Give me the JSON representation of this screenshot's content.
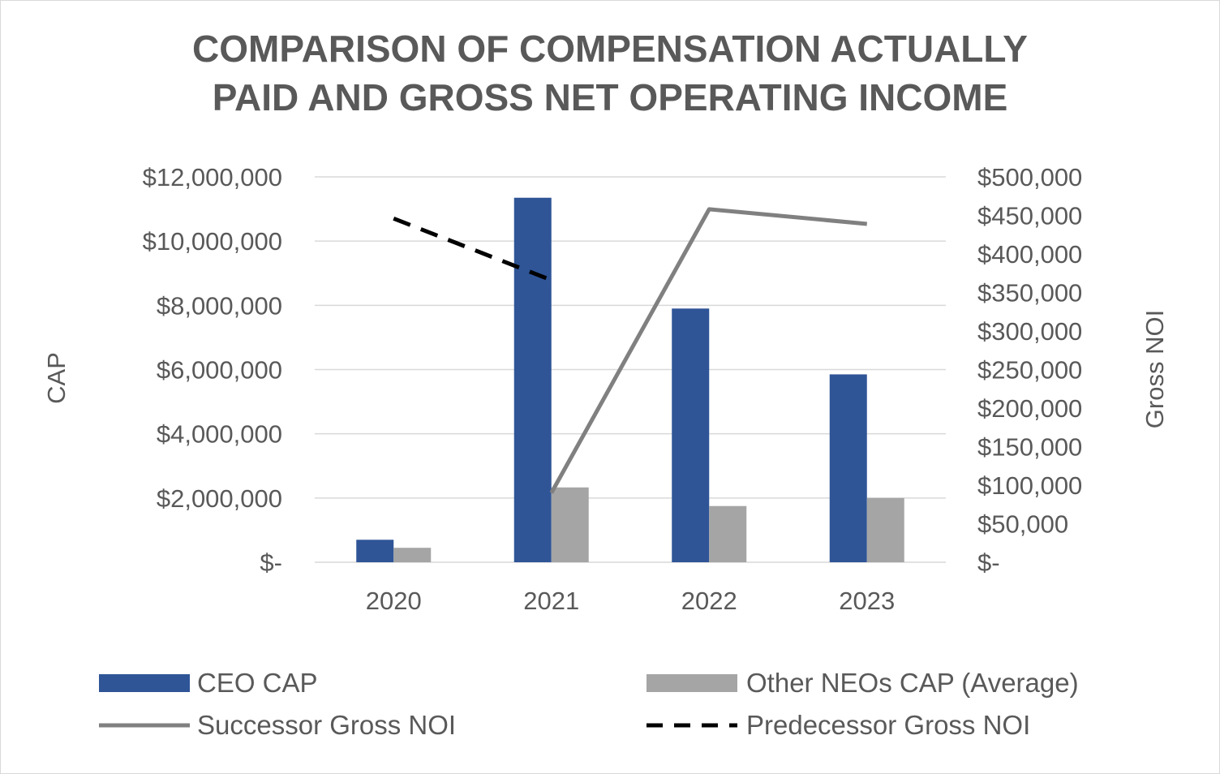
{
  "chart_data": {
    "type": "bar",
    "title_line1": "COMPARISON OF COMPENSATION ACTUALLY",
    "title_line2": "PAID AND GROSS NET OPERATING INCOME",
    "categories": [
      "2020",
      "2021",
      "2022",
      "2023"
    ],
    "ylabel": "CAP",
    "y2label": "Gross NOI",
    "ylim": [
      0,
      12000000
    ],
    "y2lim": [
      0,
      500000
    ],
    "yticks": [
      {
        "value": 0,
        "label": "$-"
      },
      {
        "value": 2000000,
        "label": "$2,000,000"
      },
      {
        "value": 4000000,
        "label": "$4,000,000"
      },
      {
        "value": 6000000,
        "label": "$6,000,000"
      },
      {
        "value": 8000000,
        "label": "$8,000,000"
      },
      {
        "value": 10000000,
        "label": "$10,000,000"
      },
      {
        "value": 12000000,
        "label": "$12,000,000"
      }
    ],
    "y2ticks": [
      {
        "value": 0,
        "label": "$-"
      },
      {
        "value": 50000,
        "label": "$50,000"
      },
      {
        "value": 100000,
        "label": "$100,000"
      },
      {
        "value": 150000,
        "label": "$150,000"
      },
      {
        "value": 200000,
        "label": "$200,000"
      },
      {
        "value": 250000,
        "label": "$250,000"
      },
      {
        "value": 300000,
        "label": "$300,000"
      },
      {
        "value": 350000,
        "label": "$350,000"
      },
      {
        "value": 400000,
        "label": "$400,000"
      },
      {
        "value": 450000,
        "label": "$450,000"
      },
      {
        "value": 500000,
        "label": "$500,000"
      }
    ],
    "grid": true,
    "series": [
      {
        "name": "CEO CAP",
        "type": "bar",
        "axis": "left",
        "color": "#2f5597",
        "values": [
          700000,
          11350000,
          7900000,
          5850000
        ]
      },
      {
        "name": "Other NEOs CAP (Average)",
        "type": "bar",
        "axis": "left",
        "color": "#a5a5a5",
        "values": [
          450000,
          2330000,
          1750000,
          2000000
        ]
      },
      {
        "name": "Successor Gross NOI",
        "type": "line",
        "axis": "right",
        "color": "#808080",
        "dash": "solid",
        "values": [
          null,
          90000,
          458000,
          439000
        ]
      },
      {
        "name": "Predecessor Gross NOI",
        "type": "line",
        "axis": "right",
        "color": "#000000",
        "dash": "dashed",
        "values": [
          446000,
          366000,
          null,
          null
        ]
      }
    ],
    "legend_position": "bottom"
  }
}
